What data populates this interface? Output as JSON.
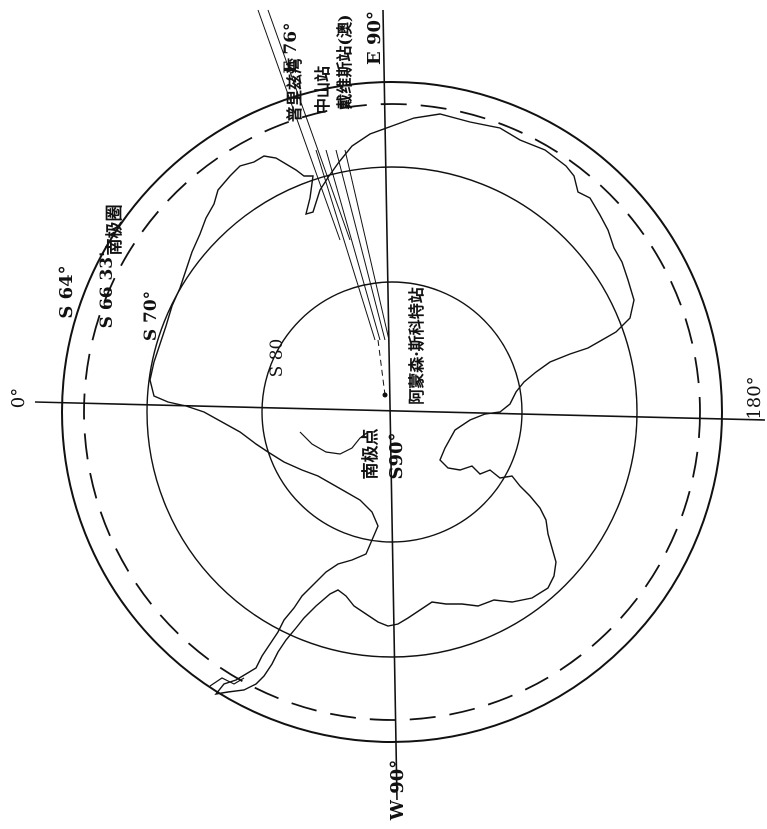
{
  "meridians": {
    "m0": "0°",
    "m90e": "E 90°",
    "m90w": "W 90°",
    "m180": "180°",
    "m76e": "E 76°"
  },
  "latitudes": {
    "s64": "S 64°",
    "s6633": "S 66 33'",
    "antarctic_circle": "南极圈",
    "s70": "S 70°",
    "s80": "S 80"
  },
  "pole": {
    "name": "南极点",
    "lat": "S90°"
  },
  "stations": {
    "amundsen_scott": "阿蒙森·斯科特站",
    "zhongshan": "中山站",
    "davis": "戴维斯站(澳)",
    "bay": "普里兹湾"
  }
}
